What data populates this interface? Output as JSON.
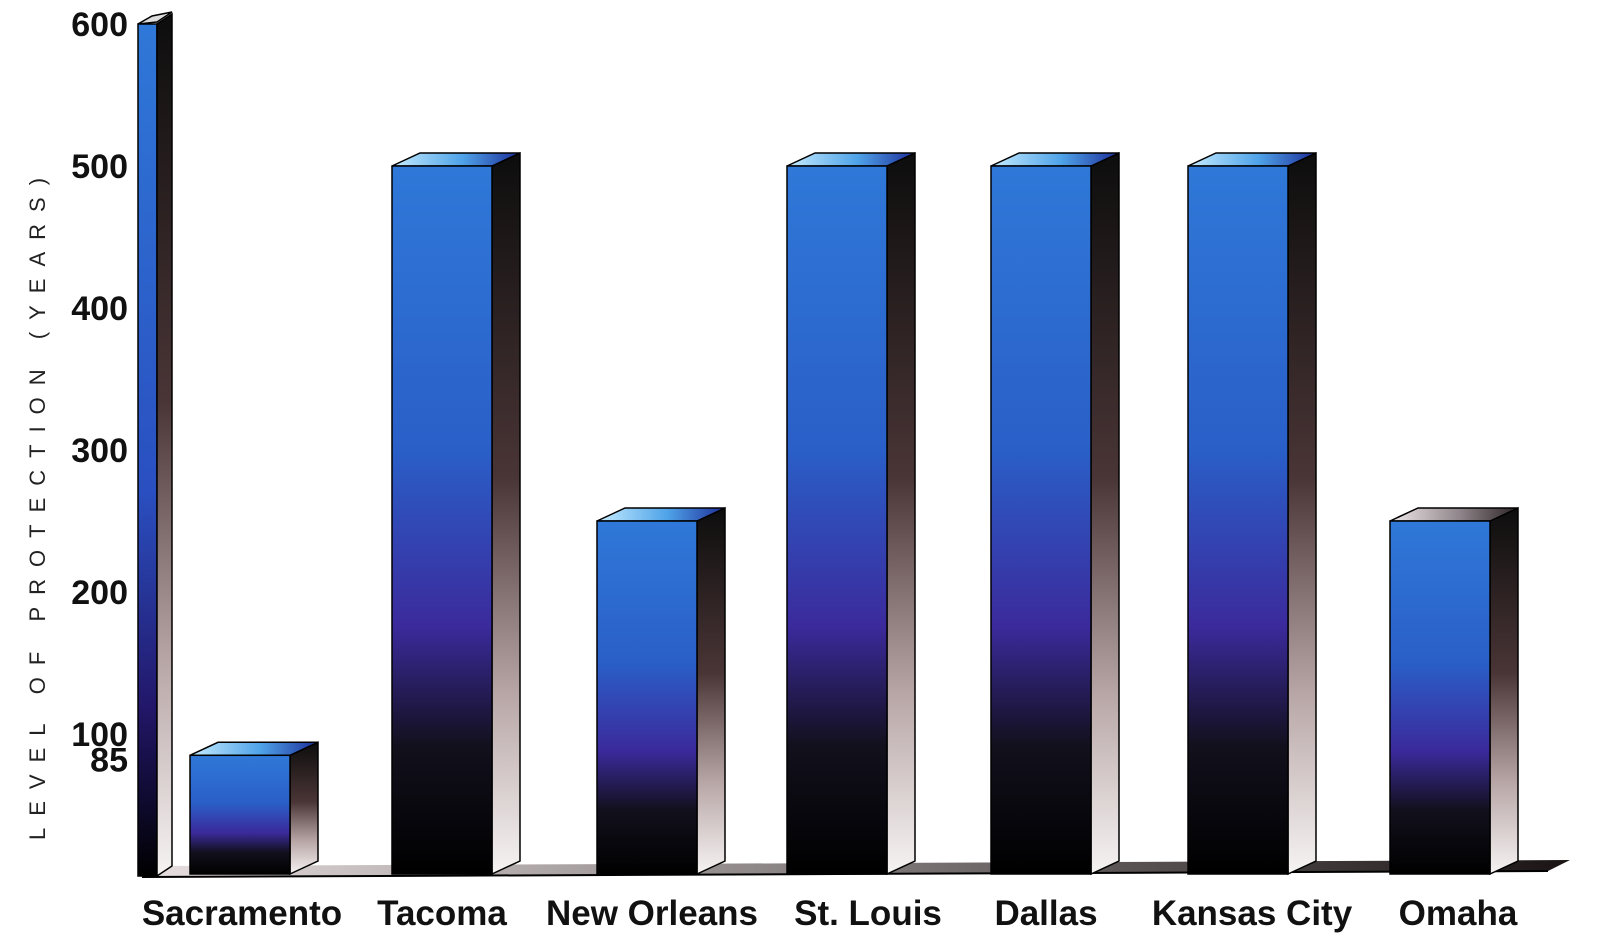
{
  "chart_data": {
    "type": "bar",
    "title": "",
    "xlabel": "",
    "ylabel": "LEVEL OF PROTECTION (YEARS)",
    "categories": [
      "Sacramento",
      "Tacoma",
      "New Orleans",
      "St. Louis",
      "Dallas",
      "Kansas City",
      "Omaha"
    ],
    "values": [
      85,
      500,
      250,
      500,
      500,
      500,
      250
    ],
    "ylim": [
      0,
      600
    ],
    "yticks": [
      100,
      200,
      300,
      400,
      500,
      600
    ],
    "ytick_labels": [
      "100",
      "200",
      "300",
      "400",
      "500",
      "600"
    ],
    "extra_tick": 85,
    "extra_tick_label": "85",
    "grid": false,
    "colors": {
      "bar_top": "#2a6fd0",
      "bar_mid": "#3a2a9a",
      "bar_bottom": "#000000",
      "side_dark": "#111111",
      "side_light": "#f2eeee",
      "cap_light": "#a9dcfb",
      "cap_dark": "#1f5fc2"
    }
  }
}
